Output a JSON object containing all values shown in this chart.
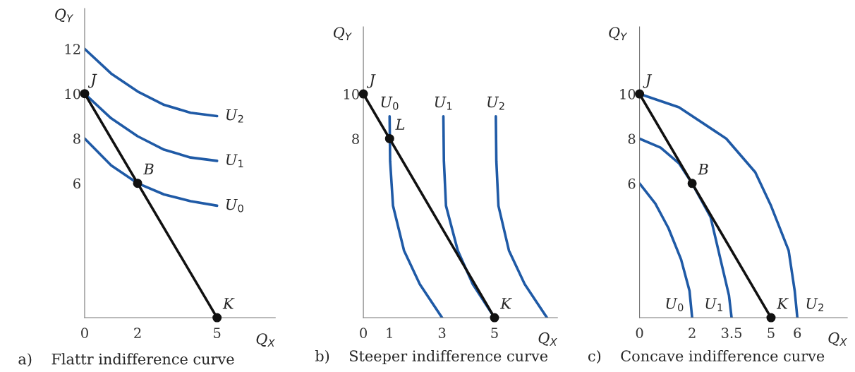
{
  "chart_data": [
    {
      "type": "line",
      "title": "a)    Flattr indifference curve",
      "xlabel": "Q$_{X}$",
      "ylabel": "Q$_{Y}$",
      "xlim": [
        0,
        7.2
      ],
      "ylim": [
        0,
        13.8
      ],
      "xticks": [
        0,
        2,
        5
      ],
      "yticks": [
        6,
        8,
        10,
        12
      ],
      "grid": false,
      "series": [
        {
          "name": "U$_{2}$",
          "color": "#1f5aa6",
          "x": [
            0,
            1,
            2,
            3,
            4,
            5
          ],
          "values": [
            12,
            10.9,
            10.1,
            9.5,
            9.15,
            9.0
          ]
        },
        {
          "name": "U$_{1}$",
          "color": "#1f5aa6",
          "x": [
            0,
            1,
            2,
            3,
            4,
            5
          ],
          "values": [
            10,
            8.9,
            8.1,
            7.5,
            7.15,
            7.0
          ]
        },
        {
          "name": "U$_{0}$",
          "color": "#1f5aa6",
          "x": [
            0,
            1,
            2,
            3,
            4,
            5
          ],
          "values": [
            8,
            6.8,
            6,
            5.5,
            5.2,
            5.0
          ]
        },
        {
          "color": "#111111",
          "x": [
            0,
            5
          ],
          "values": [
            10,
            0
          ]
        },
        {
          "type": "scatter",
          "marker": "circle",
          "color": "#111111",
          "x": [
            0,
            2,
            5
          ],
          "values": [
            10,
            6,
            0
          ]
        }
      ],
      "annotations": [
        {
          "text": "J",
          "x": 0,
          "y": 10
        },
        {
          "text": "B",
          "x": 2,
          "y": 6
        },
        {
          "text": "K",
          "x": 5,
          "y": 0
        }
      ]
    },
    {
      "type": "line",
      "title": "b)    Steeper indifference curve",
      "xlabel": "Q$_{X}$",
      "ylabel": "Q$_{Y}$",
      "xlim": [
        0,
        7.4
      ],
      "ylim": [
        0,
        13
      ],
      "xticks": [
        0,
        1,
        3,
        5
      ],
      "yticks": [
        8,
        10
      ],
      "grid": false,
      "series": [
        {
          "name": "U$_{0}$",
          "color": "#1f5aa6",
          "x": [
            1,
            1.02,
            1.13,
            1.55,
            2.15,
            3
          ],
          "values": [
            9,
            7,
            5,
            3,
            1.5,
            0
          ]
        },
        {
          "name": "U$_{1}$",
          "color": "#1f5aa6",
          "x": [
            3.05,
            3.07,
            3.15,
            3.6,
            4.17,
            5
          ],
          "values": [
            9,
            7,
            5,
            3,
            1.5,
            0
          ]
        },
        {
          "name": "U$_{2}$",
          "color": "#1f5aa6",
          "x": [
            5.05,
            5.07,
            5.15,
            5.55,
            6.15,
            7
          ],
          "values": [
            9,
            7,
            5,
            3,
            1.5,
            0
          ]
        },
        {
          "color": "#111111",
          "x": [
            0,
            5
          ],
          "values": [
            10,
            0
          ]
        },
        {
          "type": "scatter",
          "marker": "circle",
          "color": "#111111",
          "x": [
            0,
            1,
            5
          ],
          "values": [
            10,
            8,
            0
          ]
        }
      ],
      "annotations": [
        {
          "text": "J",
          "x": 0,
          "y": 10
        },
        {
          "text": "L",
          "x": 1,
          "y": 8
        },
        {
          "text": "K",
          "x": 5,
          "y": 0
        }
      ]
    },
    {
      "type": "line",
      "title": "c)    Concave indifference curve",
      "xlabel": "Q$_{X}$",
      "ylabel": "Q$_{Y}$",
      "xlim": [
        0,
        7.9
      ],
      "ylim": [
        0,
        13
      ],
      "xticks": [
        0,
        2,
        3.5,
        5,
        6
      ],
      "yticks": [
        6,
        8,
        10
      ],
      "grid": false,
      "series": [
        {
          "name": "U$_{0}$",
          "color": "#1f5aa6",
          "x": [
            0,
            0.6,
            1.1,
            1.58,
            1.9,
            2
          ],
          "values": [
            6,
            5.1,
            4,
            2.6,
            1.2,
            0
          ]
        },
        {
          "name": "U$_{1}$",
          "color": "#1f5aa6",
          "x": [
            0,
            0.8,
            1.5,
            2,
            2.7,
            3.1,
            3.4,
            3.5
          ],
          "values": [
            8,
            7.6,
            6.9,
            6,
            4.5,
            2.5,
            1,
            0
          ]
        },
        {
          "name": "U$_{2}$",
          "color": "#1f5aa6",
          "x": [
            0,
            1.5,
            3.3,
            4.4,
            5,
            5.67,
            5.9,
            6
          ],
          "values": [
            10,
            9.4,
            8,
            6.5,
            5,
            3,
            1.2,
            0
          ]
        },
        {
          "color": "#111111",
          "x": [
            0,
            5
          ],
          "values": [
            10,
            0
          ]
        },
        {
          "type": "scatter",
          "marker": "circle",
          "color": "#111111",
          "x": [
            0,
            2,
            5
          ],
          "values": [
            10,
            6,
            0
          ]
        }
      ],
      "annotations": [
        {
          "text": "J",
          "x": 0,
          "y": 10
        },
        {
          "text": "B",
          "x": 2,
          "y": 6
        },
        {
          "text": "K",
          "x": 5,
          "y": 0
        }
      ]
    }
  ]
}
